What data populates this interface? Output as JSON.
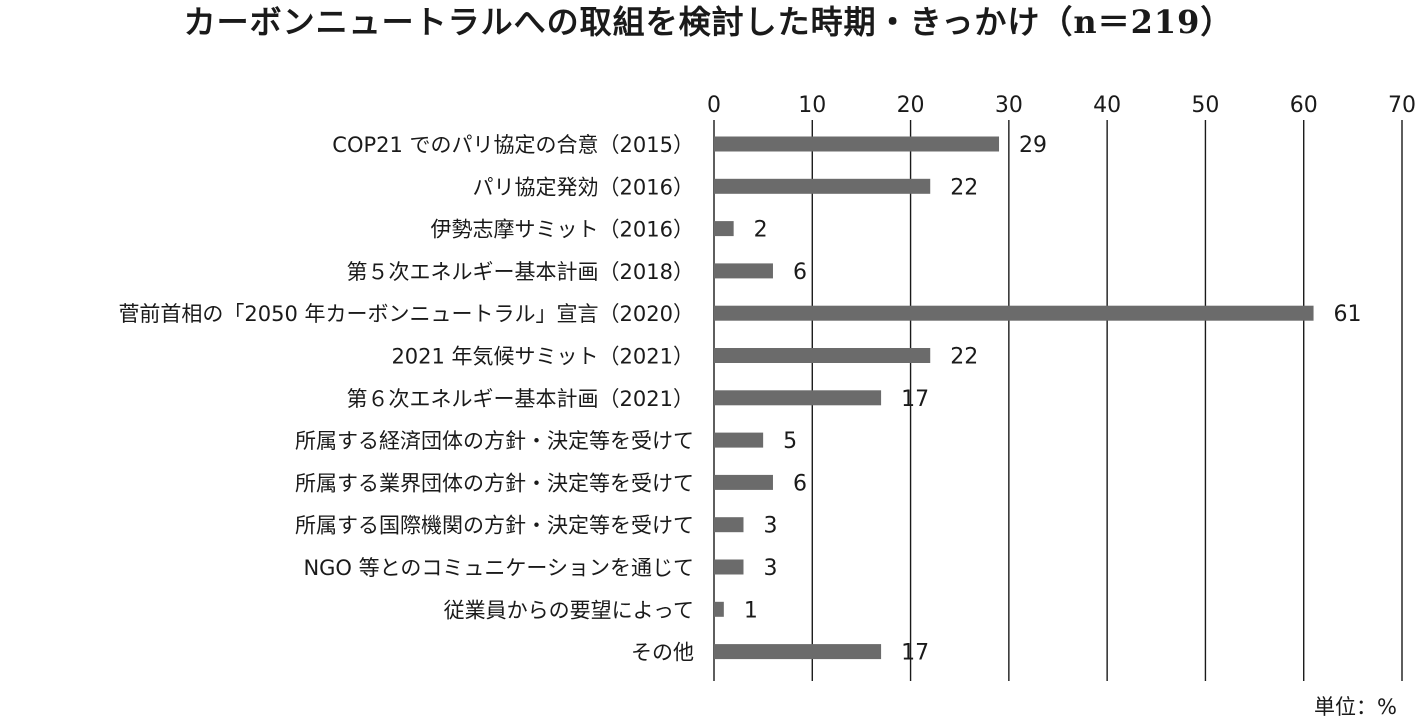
{
  "chart_data": {
    "type": "bar",
    "orientation": "horizontal",
    "title": "カーボンニュートラルへの取組を検討した時期・きっかけ（n＝219）",
    "unit_label": "単位：%",
    "xlim": [
      0,
      70
    ],
    "xticks": [
      "0",
      "10",
      "20",
      "30",
      "40",
      "50",
      "60",
      "70"
    ],
    "grid": "vertical",
    "bar_color": "#6b6b6b",
    "categories": [
      "COP21 でのパリ協定の合意（2015）",
      "パリ協定発効（2016）",
      "伊勢志摩サミット（2016）",
      "第５次エネルギー基本計画（2018）",
      "菅前首相の「2050 年カーボンニュートラル」宣言（2020）",
      "2021 年気候サミット（2021）",
      "第６次エネルギー基本計画（2021）",
      "所属する経済団体の方針・決定等を受けて",
      "所属する業界団体の方針・決定等を受けて",
      "所属する国際機関の方針・決定等を受けて",
      "NGO 等とのコミュニケーションを通じて",
      "従業員からの要望によって",
      "その他"
    ],
    "values": [
      29,
      22,
      2,
      6,
      61,
      22,
      17,
      5,
      6,
      3,
      3,
      1,
      17
    ],
    "value_labels": [
      "29",
      "22",
      "2",
      "6",
      "61",
      "22",
      "17",
      "5",
      "6",
      "3",
      "3",
      "1",
      "17"
    ]
  }
}
